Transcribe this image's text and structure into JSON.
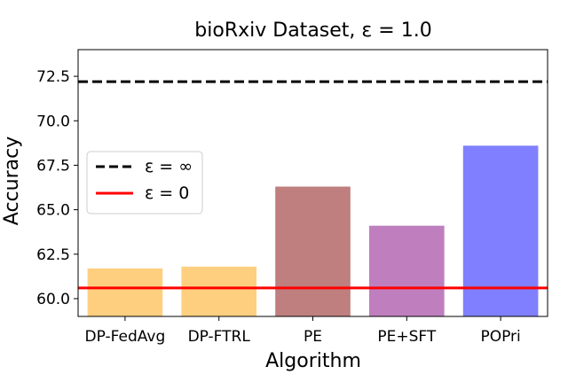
{
  "chart_data": {
    "type": "bar",
    "title": "bioRxiv Dataset, ε = 1.0",
    "xlabel": "Algorithm",
    "ylabel": "Accuracy",
    "categories": [
      "DP-FedAvg",
      "DP-FTRL",
      "PE",
      "PE+SFT",
      "POPri"
    ],
    "values": [
      61.7,
      61.8,
      66.3,
      64.1,
      68.6
    ],
    "bar_colors": [
      "#fecf7f",
      "#fecf7f",
      "#bf7f7f",
      "#bf7fbf",
      "#7f7fff"
    ],
    "ylim": [
      59.0,
      74.0
    ],
    "yticks": [
      60.0,
      62.5,
      65.0,
      67.5,
      70.0,
      72.5
    ],
    "ytick_labels": [
      "60.0",
      "62.5",
      "65.0",
      "67.5",
      "70.0",
      "72.5"
    ],
    "reference_lines": [
      {
        "label": "ε = ∞",
        "value": 72.2,
        "color": "#000000",
        "style": "dashed"
      },
      {
        "label": "ε = 0",
        "value": 60.6,
        "color": "#ff0000",
        "style": "solid"
      }
    ],
    "legend_position": "center-left",
    "grid": false
  }
}
